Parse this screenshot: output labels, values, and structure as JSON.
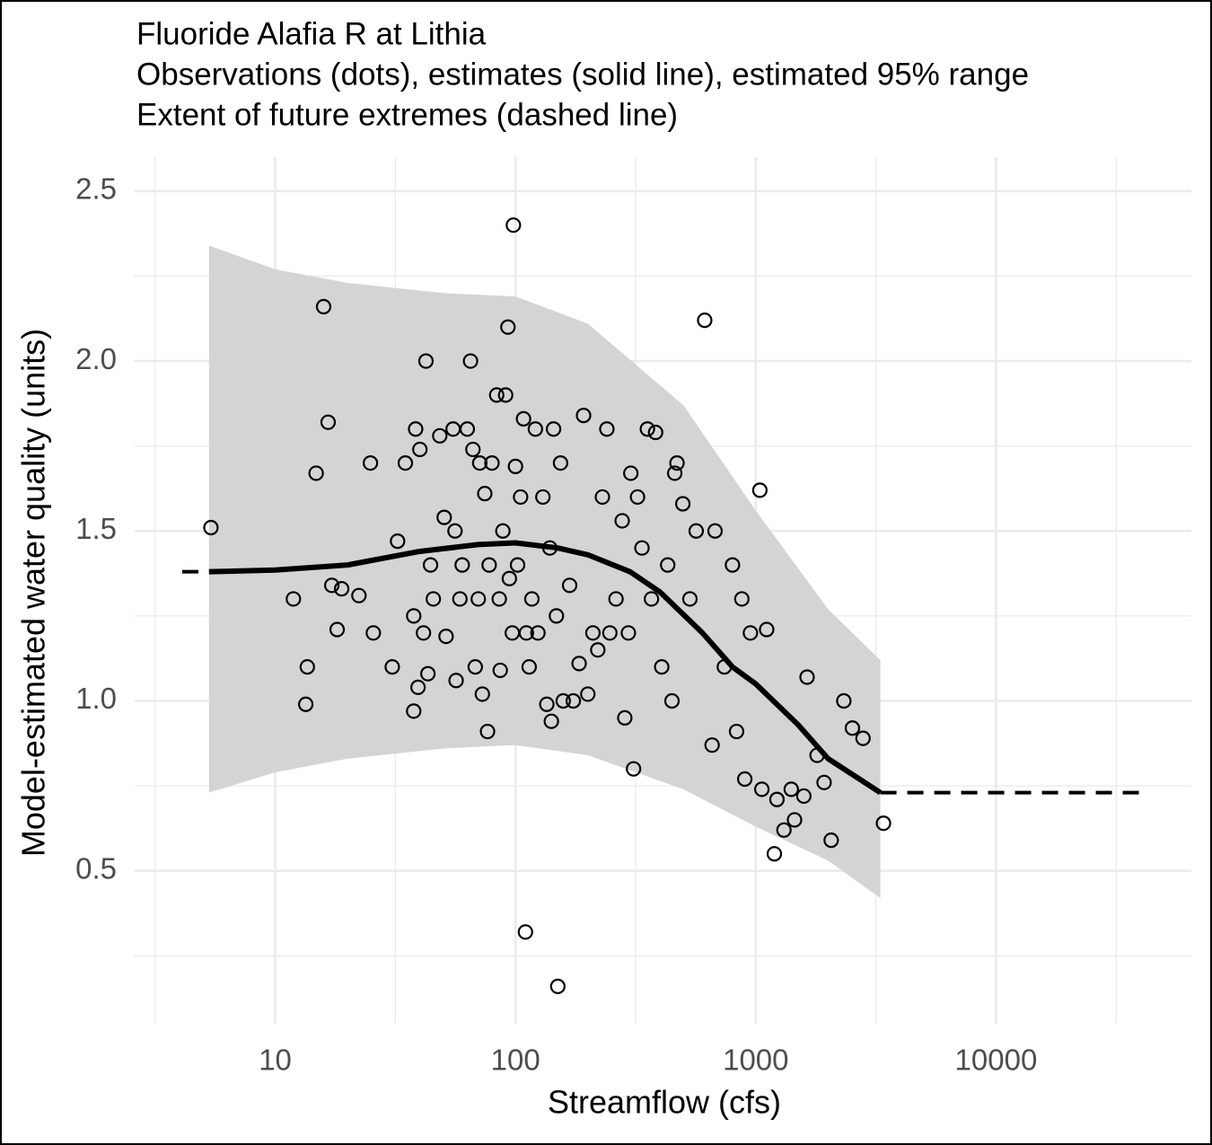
{
  "chart_data": {
    "type": "scatter",
    "title": "Fluoride Alafia R at Lithia",
    "subtitle": [
      "Observations (dots), estimates (solid line), estimated 95% range",
      "Extent of future extremes (dashed line)"
    ],
    "x_label": "Streamflow (cfs)",
    "y_label": "Model-estimated water quality (units)",
    "xlog": true,
    "xlim": [
      2.6,
      65000
    ],
    "xticks": [
      10,
      100,
      1000,
      10000
    ],
    "xminor": [
      3.162,
      31.62,
      316.2,
      3162,
      31623
    ],
    "ylim": [
      0.05,
      2.6
    ],
    "yticks": [
      0.5,
      {
        "value": 1,
        "label": "1.0"
      },
      1.5,
      {
        "value": 2,
        "label": "2.0"
      },
      2.5
    ],
    "yminor": [
      0.25,
      0.75,
      1.25,
      1.75,
      2.25
    ],
    "grid": true,
    "range": {
      "color": "#d4d4d4",
      "x": [
        5.3,
        10,
        20,
        50,
        100,
        200,
        500,
        1000,
        2000,
        3300
      ],
      "upper": [
        2.34,
        2.27,
        2.23,
        2.2,
        2.19,
        2.11,
        1.87,
        1.56,
        1.27,
        1.12
      ],
      "lower": [
        0.73,
        0.79,
        0.83,
        0.86,
        0.87,
        0.84,
        0.74,
        0.63,
        0.53,
        0.42
      ]
    },
    "estimate": {
      "color": "#000000",
      "x": [
        5.3,
        10,
        20,
        40,
        70,
        100,
        150,
        200,
        300,
        400,
        600,
        800,
        1000,
        1500,
        2000,
        3300
      ],
      "values": [
        1.38,
        1.385,
        1.4,
        1.44,
        1.46,
        1.465,
        1.45,
        1.43,
        1.38,
        1.32,
        1.2,
        1.1,
        1.05,
        0.93,
        0.83,
        0.73
      ]
    },
    "extremes": [
      {
        "x": [
          4.1,
          5.3
        ],
        "values": [
          1.38,
          1.38
        ]
      },
      {
        "x": [
          3300,
          41000
        ],
        "values": [
          0.73,
          0.73
        ]
      }
    ],
    "points": {
      "color": "#000000",
      "x": [
        5.4,
        11.9,
        13.6,
        13.4,
        14.8,
        15.9,
        16.6,
        17.2,
        18.1,
        18.9,
        22.3,
        24.9,
        25.6,
        30.7,
        32.3,
        34.8,
        37.7,
        37.7,
        38.4,
        39.3,
        40,
        41.4,
        42.4,
        43.2,
        44.3,
        45.5,
        48.4,
        50.5,
        51.4,
        55,
        56,
        56.6,
        58.7,
        60,
        63,
        65,
        66.5,
        68,
        70,
        71,
        72.8,
        74.5,
        76.5,
        77.7,
        79.8,
        83.5,
        85.6,
        86.4,
        88.6,
        91,
        93,
        94.3,
        97,
        98,
        100,
        102,
        105,
        108,
        110,
        111,
        114,
        117,
        121,
        124,
        130,
        135,
        139,
        141,
        144,
        148,
        150,
        154,
        158,
        168,
        174,
        184,
        192,
        200,
        210,
        220,
        230,
        240,
        247,
        262,
        278,
        285,
        295,
        302,
        310,
        322,
        336,
        354,
        368,
        383,
        406,
        430,
        448,
        460,
        470,
        497,
        532,
        565,
        613,
        658,
        677,
        740,
        800,
        832,
        875,
        900,
        950,
        1040,
        1060,
        1110,
        1195,
        1225,
        1310,
        1405,
        1450,
        1585,
        1635,
        1800,
        1925,
        2060,
        2325,
        2525,
        2795,
        3400
      ],
      "y": [
        1.51,
        1.3,
        1.1,
        0.99,
        1.67,
        2.16,
        1.82,
        1.34,
        1.21,
        1.33,
        1.31,
        1.7,
        1.2,
        1.1,
        1.47,
        1.7,
        0.97,
        1.25,
        1.8,
        1.04,
        1.74,
        1.2,
        2.0,
        1.08,
        1.4,
        1.3,
        1.78,
        1.54,
        1.19,
        1.8,
        1.5,
        1.06,
        1.3,
        1.4,
        1.8,
        2.0,
        1.74,
        1.1,
        1.3,
        1.7,
        1.02,
        1.61,
        0.91,
        1.4,
        1.7,
        1.9,
        1.3,
        1.09,
        1.5,
        1.9,
        2.1,
        1.36,
        1.2,
        2.4,
        1.69,
        1.4,
        1.6,
        1.83,
        0.32,
        1.2,
        1.1,
        1.3,
        1.8,
        1.2,
        1.6,
        0.99,
        1.45,
        0.94,
        1.8,
        1.25,
        0.16,
        1.7,
        1.0,
        1.34,
        1.0,
        1.11,
        1.84,
        1.02,
        1.2,
        1.15,
        1.6,
        1.8,
        1.2,
        1.3,
        1.53,
        0.95,
        1.2,
        1.67,
        0.8,
        1.6,
        1.45,
        1.8,
        1.3,
        1.79,
        1.1,
        1.4,
        1.0,
        1.67,
        1.7,
        1.58,
        1.3,
        1.5,
        2.12,
        0.87,
        1.5,
        1.1,
        1.4,
        0.91,
        1.3,
        0.77,
        1.2,
        1.62,
        0.74,
        1.21,
        0.55,
        0.71,
        0.62,
        0.74,
        0.65,
        0.72,
        1.07,
        0.84,
        0.76,
        0.59,
        1.0,
        0.92,
        0.89,
        0.64
      ]
    }
  }
}
